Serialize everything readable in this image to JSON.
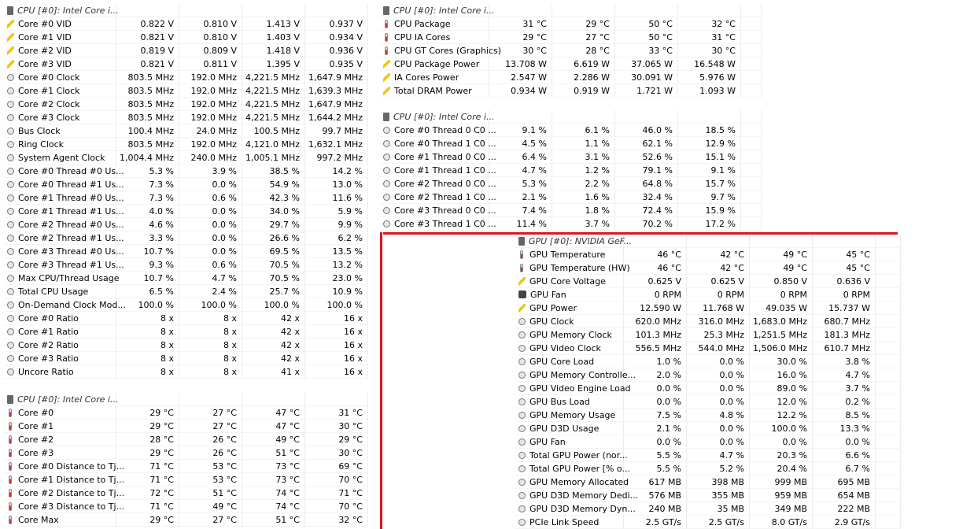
{
  "tables": [
    {
      "header": "CPU [#0]: Intel Core i...",
      "rows": [
        [
          "Core #0 VID",
          "0.822 V",
          "0.810 V",
          "1.413 V",
          "0.937 V"
        ],
        [
          "Core #1 VID",
          "0.821 V",
          "0.810 V",
          "1.403 V",
          "0.934 V"
        ],
        [
          "Core #2 VID",
          "0.819 V",
          "0.809 V",
          "1.418 V",
          "0.936 V"
        ],
        [
          "Core #3 VID",
          "0.821 V",
          "0.811 V",
          "1.395 V",
          "0.935 V"
        ],
        [
          "Core #0 Clock",
          "803.5 MHz",
          "192.0 MHz",
          "4,221.5 MHz",
          "1,647.9 MHz"
        ],
        [
          "Core #1 Clock",
          "803.5 MHz",
          "192.0 MHz",
          "4,221.5 MHz",
          "1,639.3 MHz"
        ],
        [
          "Core #2 Clock",
          "803.5 MHz",
          "192.0 MHz",
          "4,221.5 MHz",
          "1,647.9 MHz"
        ],
        [
          "Core #3 Clock",
          "803.5 MHz",
          "192.0 MHz",
          "4,221.5 MHz",
          "1,644.2 MHz"
        ],
        [
          "Bus Clock",
          "100.4 MHz",
          "24.0 MHz",
          "100.5 MHz",
          "99.7 MHz"
        ],
        [
          "Ring Clock",
          "803.5 MHz",
          "192.0 MHz",
          "4,121.0 MHz",
          "1,632.1 MHz"
        ],
        [
          "System Agent Clock",
          "1,004.4 MHz",
          "240.0 MHz",
          "1,005.1 MHz",
          "997.2 MHz"
        ],
        [
          "Core #0 Thread #0 Us...",
          "5.3 %",
          "3.9 %",
          "38.5 %",
          "14.2 %"
        ],
        [
          "Core #0 Thread #1 Us...",
          "7.3 %",
          "0.0 %",
          "54.9 %",
          "13.0 %"
        ],
        [
          "Core #1 Thread #0 Us...",
          "7.3 %",
          "0.6 %",
          "42.3 %",
          "11.6 %"
        ],
        [
          "Core #1 Thread #1 Us...",
          "4.0 %",
          "0.0 %",
          "34.0 %",
          "5.9 %"
        ],
        [
          "Core #2 Thread #0 Us...",
          "4.6 %",
          "0.0 %",
          "29.7 %",
          "9.9 %"
        ],
        [
          "Core #2 Thread #1 Us...",
          "3.3 %",
          "0.0 %",
          "26.6 %",
          "6.2 %"
        ],
        [
          "Core #3 Thread #0 Us...",
          "10.7 %",
          "0.0 %",
          "69.5 %",
          "13.5 %"
        ],
        [
          "Core #3 Thread #1 Us...",
          "9.3 %",
          "0.6 %",
          "70.5 %",
          "13.2 %"
        ],
        [
          "Max CPU/Thread Usage",
          "10.7 %",
          "4.7 %",
          "70.5 %",
          "23.0 %"
        ],
        [
          "Total CPU Usage",
          "6.5 %",
          "2.4 %",
          "25.7 %",
          "10.9 %"
        ],
        [
          "On-Demand Clock Mod...",
          "100.0 %",
          "100.0 %",
          "100.0 %",
          "100.0 %"
        ],
        [
          "Core #0 Ratio",
          "8 x",
          "8 x",
          "42 x",
          "16 x"
        ],
        [
          "Core #1 Ratio",
          "8 x",
          "8 x",
          "42 x",
          "16 x"
        ],
        [
          "Core #2 Ratio",
          "8 x",
          "8 x",
          "42 x",
          "16 x"
        ],
        [
          "Core #3 Ratio",
          "8 x",
          "8 x",
          "42 x",
          "16 x"
        ],
        [
          "Uncore Ratio",
          "8 x",
          "8 x",
          "41 x",
          "16 x"
        ]
      ]
    },
    {
      "header": "CPU [#0]: Intel Core i...",
      "rows": [
        [
          "Core #0",
          "29 °C",
          "27 °C",
          "47 °C",
          "31 °C"
        ],
        [
          "Core #1",
          "29 °C",
          "27 °C",
          "47 °C",
          "30 °C"
        ],
        [
          "Core #2",
          "28 °C",
          "26 °C",
          "49 °C",
          "29 °C"
        ],
        [
          "Core #3",
          "29 °C",
          "26 °C",
          "51 °C",
          "30 °C"
        ],
        [
          "Core #0 Distance to Tj...",
          "71 °C",
          "53 °C",
          "73 °C",
          "69 °C"
        ],
        [
          "Core #1 Distance to Tj...",
          "71 °C",
          "53 °C",
          "73 °C",
          "70 °C"
        ],
        [
          "Core #2 Distance to Tj...",
          "72 °C",
          "51 °C",
          "74 °C",
          "71 °C"
        ],
        [
          "Core #3 Distance to Tj...",
          "71 °C",
          "49 °C",
          "74 °C",
          "70 °C"
        ],
        [
          "Core Max",
          "29 °C",
          "27 °C",
          "51 °C",
          "32 °C"
        ]
      ]
    },
    {
      "header": "CPU [#0]: Intel Core i...",
      "rows": [
        [
          "CPU Package",
          "31 °C",
          "29 °C",
          "50 °C",
          "32 °C"
        ],
        [
          "CPU IA Cores",
          "29 °C",
          "27 °C",
          "50 °C",
          "31 °C"
        ],
        [
          "CPU GT Cores (Graphics)",
          "30 °C",
          "28 °C",
          "33 °C",
          "30 °C"
        ],
        [
          "CPU Package Power",
          "13.708 W",
          "6.619 W",
          "37.065 W",
          "16.548 W"
        ],
        [
          "IA Cores Power",
          "2.547 W",
          "2.286 W",
          "30.091 W",
          "5.976 W"
        ],
        [
          "Total DRAM Power",
          "0.934 W",
          "0.919 W",
          "1.721 W",
          "1.093 W"
        ]
      ]
    },
    {
      "header": "CPU [#0]: Intel Core i...",
      "rows": [
        [
          "Core #0 Thread 0 C0 ...",
          "9.1 %",
          "6.1 %",
          "46.0 %",
          "18.5 %"
        ],
        [
          "Core #0 Thread 1 C0 ...",
          "4.5 %",
          "1.1 %",
          "62.1 %",
          "12.9 %"
        ],
        [
          "Core #1 Thread 0 C0 ...",
          "6.4 %",
          "3.1 %",
          "52.6 %",
          "15.1 %"
        ],
        [
          "Core #1 Thread 1 C0 ...",
          "4.7 %",
          "1.2 %",
          "79.1 %",
          "9.1 %"
        ],
        [
          "Core #2 Thread 0 C0 ...",
          "5.3 %",
          "2.2 %",
          "64.8 %",
          "15.7 %"
        ],
        [
          "Core #2 Thread 1 C0 ...",
          "2.1 %",
          "1.6 %",
          "32.4 %",
          "9.7 %"
        ],
        [
          "Core #3 Thread 0 C0 ...",
          "7.4 %",
          "1.8 %",
          "72.4 %",
          "15.9 %"
        ],
        [
          "Core #3 Thread 1 C0 ...",
          "11.4 %",
          "3.7 %",
          "70.2 %",
          "17.2 %"
        ]
      ]
    },
    {
      "header": "GPU [#0]: NVIDIA GeF...",
      "rows": [
        [
          "GPU Temperature",
          "46 °C",
          "42 °C",
          "49 °C",
          "45 °C"
        ],
        [
          "GPU Temperature (HW)",
          "46 °C",
          "42 °C",
          "49 °C",
          "45 °C"
        ],
        [
          "GPU Core Voltage",
          "0.625 V",
          "0.625 V",
          "0.850 V",
          "0.636 V"
        ],
        [
          "GPU Fan",
          "0 RPM",
          "0 RPM",
          "0 RPM",
          "0 RPM"
        ],
        [
          "GPU Power",
          "12.590 W",
          "11.768 W",
          "49.035 W",
          "15.737 W"
        ],
        [
          "GPU Clock",
          "620.0 MHz",
          "316.0 MHz",
          "1,683.0 MHz",
          "680.7 MHz"
        ],
        [
          "GPU Memory Clock",
          "101.3 MHz",
          "25.3 MHz",
          "1,251.5 MHz",
          "181.3 MHz"
        ],
        [
          "GPU Video Clock",
          "556.5 MHz",
          "544.0 MHz",
          "1,506.0 MHz",
          "610.7 MHz"
        ],
        [
          "GPU Core Load",
          "1.0 %",
          "0.0 %",
          "30.0 %",
          "3.8 %"
        ],
        [
          "GPU Memory Controlle...",
          "2.0 %",
          "0.0 %",
          "16.0 %",
          "4.7 %"
        ],
        [
          "GPU Video Engine Load",
          "0.0 %",
          "0.0 %",
          "89.0 %",
          "3.7 %"
        ],
        [
          "GPU Bus Load",
          "0.0 %",
          "0.0 %",
          "12.0 %",
          "0.2 %"
        ],
        [
          "GPU Memory Usage",
          "7.5 %",
          "4.8 %",
          "12.2 %",
          "8.5 %"
        ],
        [
          "GPU D3D Usage",
          "2.1 %",
          "0.0 %",
          "100.0 %",
          "13.3 %"
        ],
        [
          "GPU Fan",
          "0.0 %",
          "0.0 %",
          "0.0 %",
          "0.0 %"
        ],
        [
          "Total GPU Power (nor...",
          "5.5 %",
          "4.7 %",
          "20.3 %",
          "6.6 %"
        ],
        [
          "Total GPU Power [% o...",
          "5.5 %",
          "5.2 %",
          "20.4 %",
          "6.7 %"
        ],
        [
          "GPU Memory Allocated",
          "617 MB",
          "398 MB",
          "999 MB",
          "695 MB"
        ],
        [
          "GPU D3D Memory Dedi...",
          "576 MB",
          "355 MB",
          "959 MB",
          "654 MB"
        ],
        [
          "GPU D3D Memory Dyn...",
          "240 MB",
          "35 MB",
          "349 MB",
          "222 MB"
        ],
        [
          "PCIe Link Speed",
          "2.5 GT/s",
          "2.5 GT/s",
          "8.0 GT/s",
          "2.9 GT/s"
        ]
      ]
    }
  ]
}
